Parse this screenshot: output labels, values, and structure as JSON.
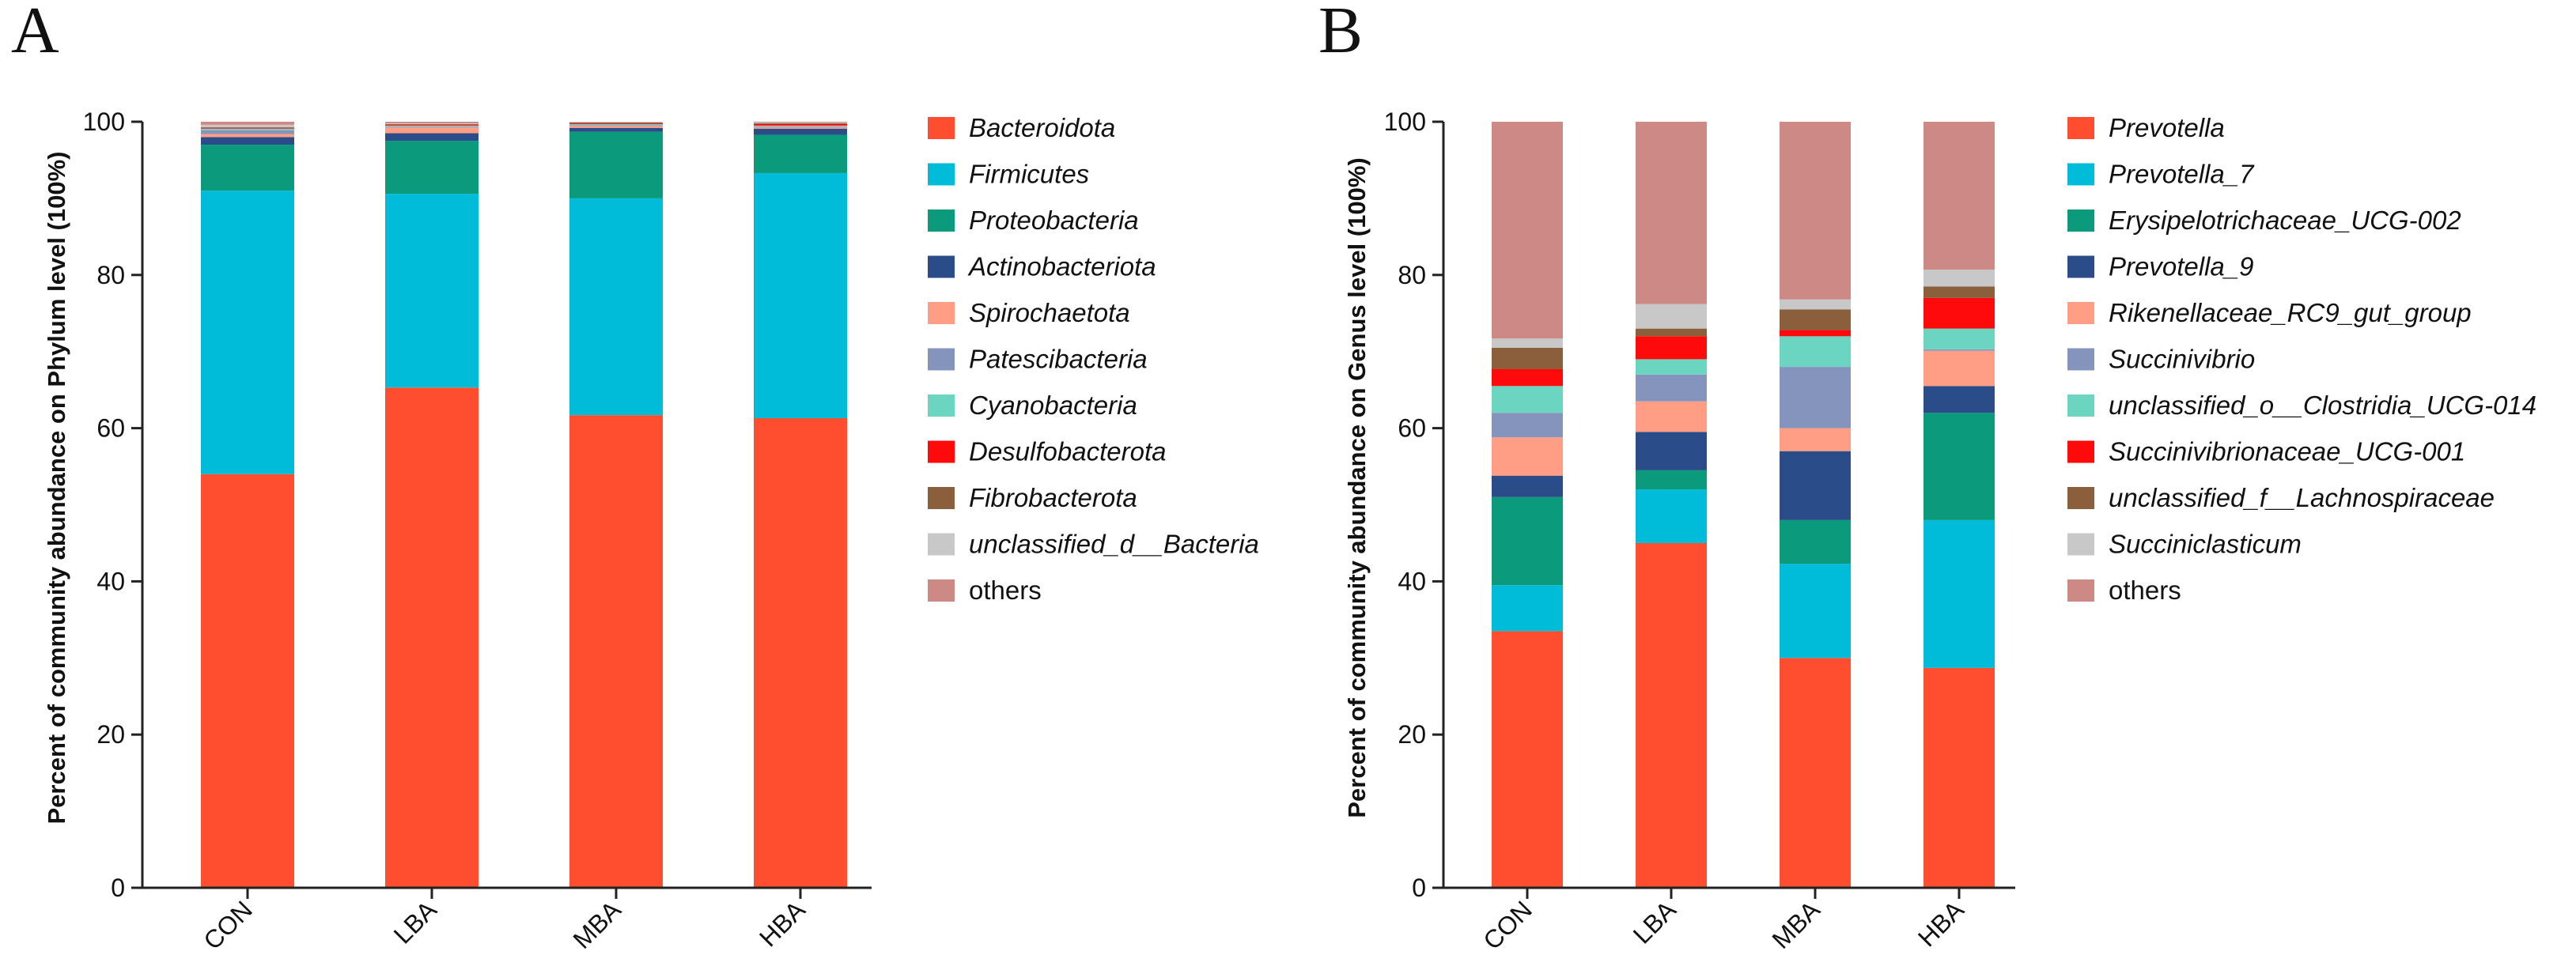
{
  "colors": [
    "#FF4E2F",
    "#00BCD8",
    "#0B9A7C",
    "#2A4C88",
    "#FF9E85",
    "#8594BD",
    "#6CD5C2",
    "#FF0A0A",
    "#8B5E3C",
    "#C8C8C8",
    "#CD8A84"
  ],
  "chart_data": [
    {
      "panel": "A",
      "type": "bar",
      "stacked": true,
      "ylabel": "Percent of community abundance on Phylum level (100%)",
      "xlabel": "",
      "ylim": [
        0,
        100
      ],
      "yticks": [
        0,
        20,
        40,
        60,
        80,
        100
      ],
      "categories": [
        "CON",
        "LBA",
        "MBA",
        "HBA"
      ],
      "series": [
        {
          "name": "Bacteroidota",
          "italic": true,
          "values": [
            54.0,
            65.3,
            61.7,
            61.3
          ]
        },
        {
          "name": "Firmicutes",
          "italic": true,
          "values": [
            37.0,
            25.3,
            28.3,
            32.0
          ]
        },
        {
          "name": "Proteobacteria",
          "italic": true,
          "values": [
            6.0,
            6.9,
            8.7,
            5.0
          ]
        },
        {
          "name": "Actinobacteriota",
          "italic": true,
          "values": [
            1.0,
            1.0,
            0.5,
            0.8
          ]
        },
        {
          "name": "Spirochaetota",
          "italic": true,
          "values": [
            0.4,
            0.8,
            0.3,
            0.2
          ]
        },
        {
          "name": "Patescibacteria",
          "italic": true,
          "values": [
            0.5,
            0.1,
            0.1,
            0.1
          ]
        },
        {
          "name": "Cyanobacteria",
          "italic": true,
          "values": [
            0.2,
            0.1,
            0.1,
            0.1
          ]
        },
        {
          "name": "Desulfobacterota",
          "italic": true,
          "values": [
            0.1,
            0.1,
            0.1,
            0.2
          ]
        },
        {
          "name": "Fibrobacterota",
          "italic": true,
          "values": [
            0.1,
            0.1,
            0.1,
            0.1
          ]
        },
        {
          "name": "unclassified_d__Bacteria",
          "italic": true,
          "values": [
            0.3,
            0.1,
            0.1,
            0.1
          ]
        },
        {
          "name": "others",
          "italic": false,
          "values": [
            0.4,
            0.2,
            0.0,
            0.1
          ]
        }
      ]
    },
    {
      "panel": "B",
      "type": "bar",
      "stacked": true,
      "ylabel": "Percent of community abundance on Genus level (100%)",
      "xlabel": "",
      "ylim": [
        0,
        100
      ],
      "yticks": [
        0,
        20,
        40,
        60,
        80,
        100
      ],
      "categories": [
        "CON",
        "LBA",
        "MBA",
        "HBA"
      ],
      "series": [
        {
          "name": "Prevotella",
          "italic": true,
          "values": [
            33.5,
            45.0,
            30.0,
            28.7
          ]
        },
        {
          "name": "Prevotella_7",
          "italic": true,
          "values": [
            6.0,
            7.0,
            12.3,
            19.3
          ]
        },
        {
          "name": "Erysipelotrichaceae_UCG-002",
          "italic": true,
          "values": [
            11.5,
            2.5,
            5.7,
            14.0
          ]
        },
        {
          "name": "Prevotella_9",
          "italic": true,
          "values": [
            2.8,
            5.0,
            9.0,
            3.5
          ]
        },
        {
          "name": "Rikenellaceae_RC9_gut_group",
          "italic": true,
          "values": [
            5.0,
            4.0,
            3.0,
            4.6
          ]
        },
        {
          "name": "Succinivibrio",
          "italic": true,
          "values": [
            3.2,
            3.5,
            8.0,
            0.2
          ]
        },
        {
          "name": "unclassified_o__Clostridia_UCG-014",
          "italic": true,
          "values": [
            3.5,
            2.0,
            4.0,
            2.7
          ]
        },
        {
          "name": "Succinivibrionaceae_UCG-001",
          "italic": true,
          "values": [
            2.2,
            3.0,
            0.8,
            4.0
          ]
        },
        {
          "name": "unclassified_f__Lachnospiraceae",
          "italic": true,
          "values": [
            2.8,
            1.0,
            2.7,
            1.5
          ]
        },
        {
          "name": "Succiniclasticum",
          "italic": true,
          "values": [
            1.2,
            3.2,
            1.3,
            2.2
          ]
        },
        {
          "name": "others",
          "italic": false,
          "values": [
            28.3,
            23.8,
            23.2,
            19.3
          ]
        }
      ]
    }
  ]
}
